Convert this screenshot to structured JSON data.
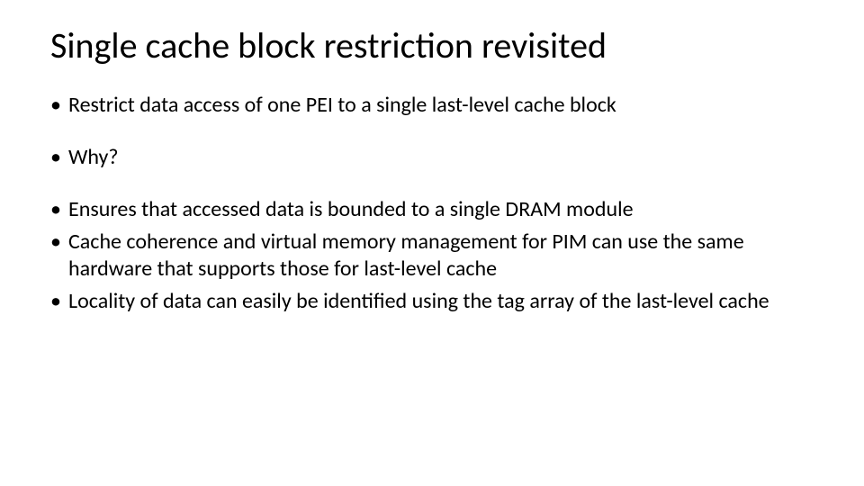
{
  "slide": {
    "title": "Single cache block restriction revisited",
    "bullets": {
      "b1": "Restrict data access of one PEI to a single last-level cache block",
      "b2": "Why?",
      "b3": "Ensures that accessed data is bounded to a single DRAM module",
      "b4": "Cache coherence and virtual memory management for PIM can use the same hardware that supports those for last-level cache",
      "b5": "Locality of data can easily be identified using the tag array of the last-level cache"
    },
    "colors": {
      "background": "#ffffff",
      "text": "#000000"
    },
    "fonts": {
      "title_size_pt": 40,
      "body_size_pt": 24,
      "family": "Calibri"
    }
  }
}
